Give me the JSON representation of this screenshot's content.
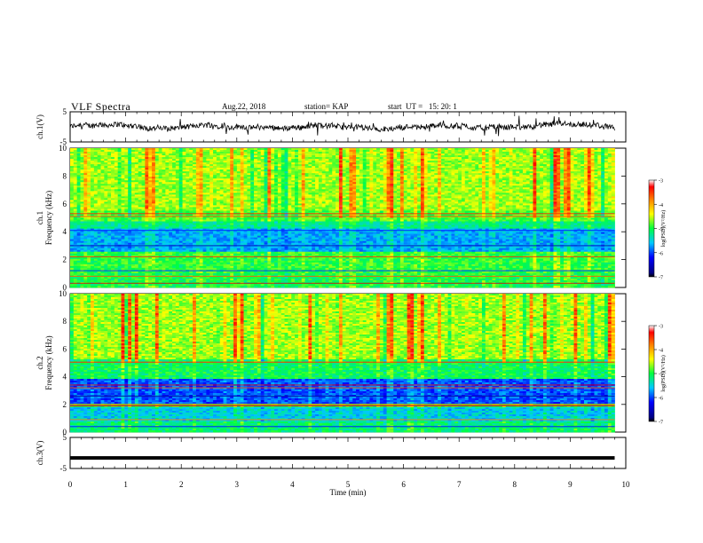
{
  "header": {
    "title": "VLF Spectra",
    "date": "Aug.22, 2018",
    "station": "station= KAP",
    "start": "start  UT =   15: 20: 1"
  },
  "chart_data": [
    {
      "type": "line",
      "name": "ch1-waveform",
      "ylabel": "ch.1(V)",
      "ylim": [
        -5,
        5
      ],
      "yticks": [
        "5",
        "-5"
      ],
      "xlim": [
        0,
        10
      ],
      "note": "noisy waveform centered near 0 V spanning ~0 to 9.8 min"
    },
    {
      "type": "heatmap",
      "name": "ch1-spectrogram",
      "ylabel": [
        "ch.1",
        "Frequency  (kHz)"
      ],
      "ylim": [
        0,
        10
      ],
      "yticks": [
        "0",
        "2",
        "4",
        "6",
        "8",
        "10"
      ],
      "xlim": [
        0,
        10
      ],
      "data_end_min": 9.8,
      "colorbar": {
        "label": "log(PSD)(V²/Hz)",
        "range": [
          -7,
          -3
        ],
        "ticks": [
          "-3",
          "-4",
          "-5",
          "-6",
          "-7"
        ]
      }
    },
    {
      "type": "heatmap",
      "name": "ch2-spectrogram",
      "ylabel": [
        "ch.2",
        "Frequency  (kHz)"
      ],
      "ylim": [
        0,
        10
      ],
      "yticks": [
        "0",
        "2",
        "4",
        "6",
        "8",
        "10"
      ],
      "xlim": [
        0,
        10
      ],
      "data_end_min": 9.8,
      "colorbar": {
        "label": "log(PSD)(V²/Hz)",
        "range": [
          -7,
          -3
        ],
        "ticks": [
          "-3",
          "-4",
          "-5",
          "-6",
          "-7"
        ]
      }
    },
    {
      "type": "line",
      "name": "ch3-level",
      "ylabel": "ch.3(V)",
      "ylim": [
        -5,
        5
      ],
      "yticks": [
        "5",
        "-5"
      ],
      "xlim": [
        0,
        10
      ],
      "values": [
        [
          0,
          -1.6
        ],
        [
          9.8,
          -1.6
        ]
      ]
    }
  ],
  "xaxis": {
    "label": "Time  (min)",
    "ticks": [
      "0",
      "1",
      "2",
      "3",
      "4",
      "5",
      "6",
      "7",
      "8",
      "9",
      "10"
    ]
  }
}
